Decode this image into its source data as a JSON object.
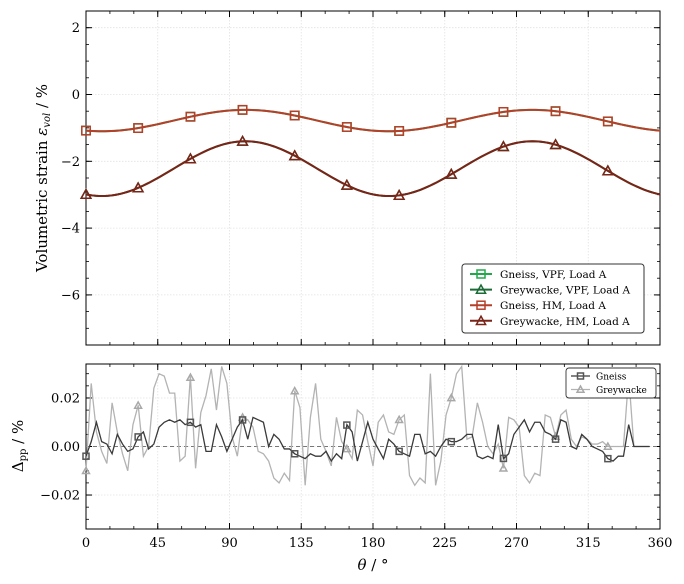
{
  "chart_data": [
    {
      "type": "line",
      "ylabel_main": "Volumetric strain ",
      "ylabel_symbol": "ε",
      "ylabel_sub": "vol",
      "ylabel_unit": " / %",
      "xlim": [
        0,
        360
      ],
      "ylim": [
        -7.5,
        2.5
      ],
      "yticks": [
        -6,
        -4,
        -2,
        0,
        2
      ],
      "ytick_labels": [
        "−6",
        "−4",
        "−2",
        "0",
        "2"
      ],
      "xticks": [
        0,
        45,
        90,
        135,
        180,
        225,
        270,
        315,
        360
      ],
      "grid": true,
      "legend_position": "lower-right",
      "series": [
        {
          "name": "Gneiss, VPF, Load A",
          "color": "#22a84a",
          "marker": "square",
          "mean": -0.78,
          "amp": 0.32,
          "hidden_under": "Gneiss, HM, Load A"
        },
        {
          "name": "Greywacke, VPF, Load A",
          "color": "#1a6b36",
          "marker": "triangle",
          "mean": -2.22,
          "amp": 0.82,
          "hidden_under": "Greywacke, HM, Load A"
        },
        {
          "name": "Gneiss, HM, Load A",
          "color": "#b5402a",
          "marker": "square",
          "mean": -0.78,
          "amp": 0.32
        },
        {
          "name": "Greywacke, HM, Load A",
          "color": "#7a2418",
          "marker": "triangle",
          "mean": -2.22,
          "amp": 0.82
        }
      ],
      "curve_formula": "mean + amp*cos(2*(theta - 100deg))",
      "marker_theta": [
        0,
        32.7,
        65.5,
        98.2,
        130.9,
        163.6,
        196.4,
        229.1,
        261.8,
        294.5,
        327.3
      ]
    },
    {
      "type": "line",
      "ylabel_main": "Δ",
      "ylabel_sub": "pp",
      "ylabel_unit": " / %",
      "xlabel_main": "θ",
      "xlabel_unit": " / °",
      "xlim": [
        0,
        360
      ],
      "ylim": [
        -0.034,
        0.034
      ],
      "yticks": [
        -0.02,
        0.0,
        0.02
      ],
      "ytick_labels": [
        "−0.02",
        "0.00",
        "0.02"
      ],
      "xticks": [
        0,
        45,
        90,
        135,
        180,
        225,
        270,
        315,
        360
      ],
      "xtick_labels": [
        "0",
        "45",
        "90",
        "135",
        "180",
        "225",
        "270",
        "315",
        "360"
      ],
      "grid": true,
      "legend_position": "top-right",
      "series": [
        {
          "name": "Gneiss",
          "color": "#3a3a3a",
          "marker": "square",
          "theta": [
            0,
            3.27,
            6.55,
            9.82,
            13.09,
            16.36,
            19.64,
            22.91,
            26.18,
            29.45,
            32.73,
            36.0,
            39.27,
            42.55,
            45.82,
            49.09,
            52.36,
            55.64,
            58.91,
            62.18,
            65.45,
            68.73,
            72.0,
            75.27,
            78.55,
            81.82,
            85.09,
            88.36,
            91.64,
            94.91,
            98.18,
            101.45,
            104.73,
            108.0,
            111.27,
            114.55,
            117.82,
            121.09,
            124.36,
            127.64,
            130.91,
            134.18,
            137.45,
            140.73,
            144.0,
            147.27,
            150.55,
            153.82,
            157.09,
            160.36,
            163.64,
            166.91,
            170.18,
            173.45,
            176.73,
            180.0,
            183.27,
            186.55,
            189.82,
            193.09,
            196.36,
            199.64,
            202.91,
            206.18,
            209.45,
            212.73,
            216.0,
            219.27,
            222.55,
            225.82,
            229.09,
            232.36,
            235.64,
            238.91,
            242.18,
            245.45,
            248.73,
            252.0,
            255.27,
            258.55,
            261.82,
            265.09,
            268.36,
            271.64,
            274.91,
            278.18,
            281.45,
            284.73,
            288.0,
            291.27,
            294.55,
            297.82,
            301.09,
            304.36,
            307.64,
            310.91,
            314.18,
            317.45,
            320.73,
            324.0,
            327.27,
            330.55,
            333.82,
            337.09,
            340.36,
            343.64,
            346.91,
            350.18,
            353.45
          ],
          "values": [
            -0.004,
            0.002,
            0.01,
            0.002,
            0.001,
            -0.003,
            0.005,
            0.001,
            -0.002,
            -0.001,
            0.004,
            0.006,
            -0.001,
            0.001,
            0.008,
            0.01,
            0.011,
            0.01,
            0.011,
            0.009,
            0.01,
            0.008,
            0.009,
            -0.002,
            -0.002,
            0.009,
            0.004,
            -0.002,
            0.003,
            0.008,
            0.011,
            0.003,
            0.012,
            0.011,
            0.01,
            0.0,
            0.005,
            0.003,
            -0.001,
            -0.001,
            -0.003,
            -0.004,
            -0.005,
            -0.003,
            -0.004,
            -0.004,
            -0.002,
            -0.006,
            -0.003,
            -0.005,
            0.009,
            0.006,
            -0.006,
            0.002,
            0.01,
            0.003,
            -0.001,
            -0.005,
            0.003,
            0.001,
            -0.002,
            -0.003,
            -0.004,
            0.005,
            0.005,
            -0.003,
            -0.002,
            -0.004,
            0.0,
            0.003,
            0.002,
            0.002,
            0.003,
            0.005,
            0.005,
            -0.004,
            -0.005,
            -0.004,
            -0.005,
            0.009,
            -0.005,
            -0.003,
            0.005,
            0.008,
            0.011,
            0.006,
            0.01,
            0.01,
            0.006,
            0.005,
            0.003,
            0.011,
            0.01,
            0.0,
            -0.001,
            0.005,
            0.003,
            0.0,
            -0.001,
            -0.002,
            -0.005,
            -0.006,
            -0.004,
            -0.004,
            0.009,
            0.0,
            0.0,
            0.0,
            0.0
          ],
          "marker_theta": [
            0,
            32.7,
            65.5,
            98.2,
            130.9,
            163.6,
            196.4,
            229.1,
            261.8,
            294.5,
            327.3
          ]
        },
        {
          "name": "Greywacke",
          "color": "#b3b3b3",
          "marker": "triangle",
          "theta": [
            0,
            3.27,
            6.55,
            9.82,
            13.09,
            16.36,
            19.64,
            22.91,
            26.18,
            29.45,
            32.73,
            36.0,
            39.27,
            42.55,
            45.82,
            49.09,
            52.36,
            55.64,
            58.91,
            62.18,
            65.45,
            68.73,
            72.0,
            75.27,
            78.55,
            81.82,
            85.09,
            88.36,
            91.64,
            94.91,
            98.18,
            101.45,
            104.73,
            108.0,
            111.27,
            114.55,
            117.82,
            121.09,
            124.36,
            127.64,
            130.91,
            134.18,
            137.45,
            140.73,
            144.0,
            147.27,
            150.55,
            153.82,
            157.09,
            160.36,
            163.64,
            166.91,
            170.18,
            173.45,
            176.73,
            180.0,
            183.27,
            186.55,
            189.82,
            193.09,
            196.36,
            199.64,
            202.91,
            206.18,
            209.45,
            212.73,
            216.0,
            219.27,
            222.55,
            225.82,
            229.09,
            232.36,
            235.64,
            238.91,
            242.18,
            245.45,
            248.73,
            252.0,
            255.27,
            258.55,
            261.82,
            265.09,
            268.36,
            271.64,
            274.91,
            278.18,
            281.45,
            284.73,
            288.0,
            291.27,
            294.55,
            297.82,
            301.09,
            304.36,
            307.64,
            310.91,
            314.18,
            317.45,
            320.73,
            324.0,
            327.27,
            330.55,
            333.82,
            337.09,
            340.36,
            343.64,
            346.91,
            350.18,
            353.45
          ],
          "values": [
            -0.01,
            0.026,
            0.006,
            -0.002,
            -0.007,
            0.018,
            0.006,
            -0.003,
            -0.01,
            0.009,
            0.017,
            -0.004,
            0.0,
            0.024,
            0.03,
            0.029,
            0.022,
            0.022,
            -0.006,
            -0.004,
            0.029,
            -0.009,
            0.014,
            0.021,
            0.032,
            0.015,
            0.033,
            0.026,
            0.004,
            -0.004,
            0.012,
            0.011,
            0.008,
            -0.002,
            -0.003,
            -0.006,
            -0.013,
            -0.015,
            -0.011,
            -0.014,
            0.023,
            0.016,
            -0.016,
            0.012,
            0.026,
            0.003,
            -0.002,
            -0.008,
            0.012,
            0.002,
            -0.001,
            -0.005,
            0.015,
            0.013,
            0.002,
            -0.008,
            0.01,
            0.013,
            0.006,
            0.005,
            0.011,
            0.013,
            -0.012,
            -0.016,
            -0.013,
            -0.015,
            0.03,
            -0.016,
            -0.006,
            0.013,
            0.02,
            0.03,
            0.033,
            0.003,
            0.004,
            0.018,
            0.01,
            0.0,
            -0.003,
            0.001,
            -0.009,
            0.012,
            0.011,
            0.008,
            -0.012,
            -0.015,
            -0.011,
            -0.012,
            0.013,
            0.012,
            0.004,
            0.013,
            0.015,
            0.003,
            0.0,
            0.004,
            0.003,
            0.001,
            0.001,
            0.002,
            0.0,
            0.0,
            0.0,
            0.0,
            0.029,
            0.0,
            0.0,
            0.0,
            0.0
          ],
          "marker_theta": [
            0,
            32.7,
            65.5,
            98.2,
            130.9,
            163.6,
            196.4,
            229.1,
            261.8,
            294.5,
            327.3
          ]
        }
      ]
    }
  ]
}
